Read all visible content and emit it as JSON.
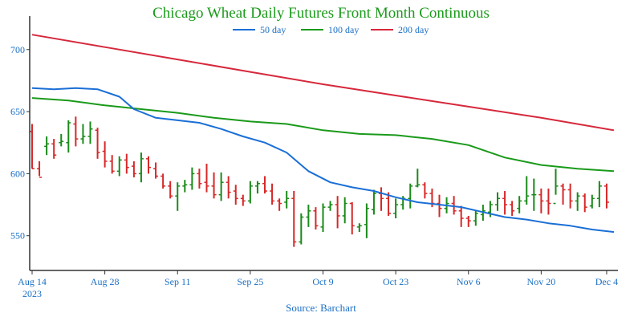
{
  "chart_data": {
    "type": "ohlc",
    "title": "Chicago Wheat Daily Futures Front Month Continuous",
    "source": "Source: Barchart",
    "colors": {
      "title": "#1a9a1a",
      "text": "#1a6fc4",
      "up": "#1a8a1a",
      "down": "#d62828",
      "ma50": "#1a6fd6",
      "ma100": "#1a9a1a",
      "ma200": "#d6283c",
      "axis": "#333333"
    },
    "ylim": [
      522,
      727
    ],
    "y_ticks": [
      550,
      600,
      650,
      700
    ],
    "x_range": [
      0,
      80
    ],
    "x_ticks": [
      {
        "pos": 0,
        "label": "Aug 14",
        "sub": "2023"
      },
      {
        "pos": 10,
        "label": "Aug 28",
        "sub": ""
      },
      {
        "pos": 20,
        "label": "Sep 11",
        "sub": ""
      },
      {
        "pos": 30,
        "label": "Sep 25",
        "sub": ""
      },
      {
        "pos": 40,
        "label": "Oct 9",
        "sub": ""
      },
      {
        "pos": 50,
        "label": "Oct 23",
        "sub": ""
      },
      {
        "pos": 60,
        "label": "Nov 6",
        "sub": ""
      },
      {
        "pos": 70,
        "label": "Nov 20",
        "sub": ""
      },
      {
        "pos": 79,
        "label": "Dec 4",
        "sub": ""
      }
    ],
    "legend": [
      {
        "key": "ma50",
        "label": "50 day"
      },
      {
        "key": "ma100",
        "label": "100 day"
      },
      {
        "key": "ma200",
        "label": "200 day"
      }
    ],
    "bars": [
      [
        634,
        604,
        640,
        604
      ],
      [
        604,
        597,
        610,
        598
      ],
      [
        622,
        624,
        630,
        615
      ],
      [
        624,
        615,
        628,
        612
      ],
      [
        625,
        626,
        632,
        622
      ],
      [
        625,
        641,
        643,
        617
      ],
      [
        640,
        628,
        646,
        622
      ],
      [
        628,
        630,
        640,
        624
      ],
      [
        630,
        636,
        642,
        624
      ],
      [
        635,
        617,
        637,
        612
      ],
      [
        618,
        610,
        626,
        605
      ],
      [
        610,
        602,
        615,
        600
      ],
      [
        602,
        611,
        614,
        598
      ],
      [
        611,
        605,
        616,
        600
      ],
      [
        606,
        600,
        610,
        597
      ],
      [
        600,
        612,
        617,
        593
      ],
      [
        612,
        605,
        614,
        600
      ],
      [
        604,
        598,
        609,
        596
      ],
      [
        598,
        590,
        600,
        588
      ],
      [
        590,
        582,
        594,
        580
      ],
      [
        582,
        590,
        593,
        570
      ],
      [
        590,
        591,
        595,
        585
      ],
      [
        591,
        600,
        605,
        587
      ],
      [
        600,
        592,
        604,
        588
      ],
      [
        593,
        590,
        608,
        585
      ],
      [
        590,
        583,
        601,
        580
      ],
      [
        583,
        593,
        601,
        578
      ],
      [
        593,
        585,
        598,
        580
      ],
      [
        586,
        580,
        591,
        575
      ],
      [
        580,
        578,
        583,
        574
      ],
      [
        578,
        590,
        594,
        576
      ],
      [
        590,
        592,
        594,
        584
      ],
      [
        592,
        586,
        598,
        584
      ],
      [
        586,
        578,
        592,
        575
      ],
      [
        578,
        576,
        580,
        570
      ],
      [
        577,
        580,
        586,
        572
      ],
      [
        580,
        545,
        586,
        541
      ],
      [
        545,
        565,
        568,
        543
      ],
      [
        565,
        570,
        575,
        557
      ],
      [
        570,
        558,
        573,
        555
      ],
      [
        557,
        573,
        576,
        553
      ],
      [
        573,
        575,
        578,
        570
      ],
      [
        575,
        566,
        582,
        556
      ],
      [
        566,
        576,
        581,
        560
      ],
      [
        576,
        558,
        577,
        551
      ],
      [
        557,
        558,
        560,
        553
      ],
      [
        559,
        572,
        576,
        548
      ],
      [
        571,
        584,
        587,
        567
      ],
      [
        584,
        580,
        589,
        570
      ],
      [
        580,
        568,
        585,
        566
      ],
      [
        568,
        575,
        580,
        564
      ],
      [
        575,
        580,
        582,
        571
      ],
      [
        580,
        590,
        592,
        572
      ],
      [
        590,
        591,
        604,
        589
      ],
      [
        591,
        584,
        593,
        580
      ],
      [
        584,
        576,
        588,
        573
      ],
      [
        576,
        572,
        583,
        565
      ],
      [
        572,
        576,
        581,
        568
      ],
      [
        576,
        570,
        582,
        567
      ],
      [
        570,
        564,
        574,
        557
      ],
      [
        564,
        562,
        566,
        557
      ],
      [
        562,
        568,
        570,
        558
      ],
      [
        567,
        570,
        575,
        562
      ],
      [
        569,
        575,
        578,
        565
      ],
      [
        575,
        580,
        585,
        570
      ],
      [
        580,
        575,
        586,
        567
      ],
      [
        575,
        570,
        578,
        566
      ],
      [
        572,
        578,
        582,
        568
      ],
      [
        578,
        582,
        598,
        575
      ],
      [
        583,
        583,
        596,
        570
      ],
      [
        583,
        578,
        588,
        568
      ],
      [
        578,
        576,
        588,
        567
      ],
      [
        576,
        590,
        604,
        583
      ],
      [
        590,
        587,
        592,
        575
      ],
      [
        587,
        578,
        592,
        572
      ],
      [
        578,
        582,
        585,
        570
      ],
      [
        582,
        573,
        584,
        569
      ],
      [
        574,
        580,
        583,
        572
      ],
      [
        580,
        590,
        594,
        573
      ],
      [
        590,
        577,
        592,
        572
      ]
    ],
    "ma50": [
      [
        0,
        669
      ],
      [
        3,
        668
      ],
      [
        6,
        669
      ],
      [
        9,
        668
      ],
      [
        12,
        662
      ],
      [
        14,
        652
      ],
      [
        17,
        645
      ],
      [
        20,
        643
      ],
      [
        23,
        641
      ],
      [
        26,
        636
      ],
      [
        29,
        630
      ],
      [
        32,
        625
      ],
      [
        35,
        617
      ],
      [
        38,
        602
      ],
      [
        41,
        593
      ],
      [
        44,
        589
      ],
      [
        47,
        586
      ],
      [
        50,
        581
      ],
      [
        53,
        577
      ],
      [
        56,
        575
      ],
      [
        59,
        573
      ],
      [
        62,
        569
      ],
      [
        65,
        565
      ],
      [
        68,
        563
      ],
      [
        71,
        560
      ],
      [
        74,
        558
      ],
      [
        77,
        555
      ],
      [
        80,
        553
      ]
    ],
    "ma100": [
      [
        0,
        661
      ],
      [
        5,
        659
      ],
      [
        10,
        655
      ],
      [
        15,
        652
      ],
      [
        20,
        649
      ],
      [
        25,
        645
      ],
      [
        30,
        642
      ],
      [
        35,
        640
      ],
      [
        40,
        635
      ],
      [
        45,
        632
      ],
      [
        50,
        631
      ],
      [
        55,
        628
      ],
      [
        60,
        623
      ],
      [
        65,
        613
      ],
      [
        70,
        607
      ],
      [
        75,
        604
      ],
      [
        80,
        602
      ]
    ],
    "ma200": [
      [
        0,
        712
      ],
      [
        10,
        702
      ],
      [
        20,
        692
      ],
      [
        30,
        682
      ],
      [
        40,
        672
      ],
      [
        50,
        663
      ],
      [
        60,
        654
      ],
      [
        70,
        645
      ],
      [
        80,
        635
      ]
    ]
  }
}
